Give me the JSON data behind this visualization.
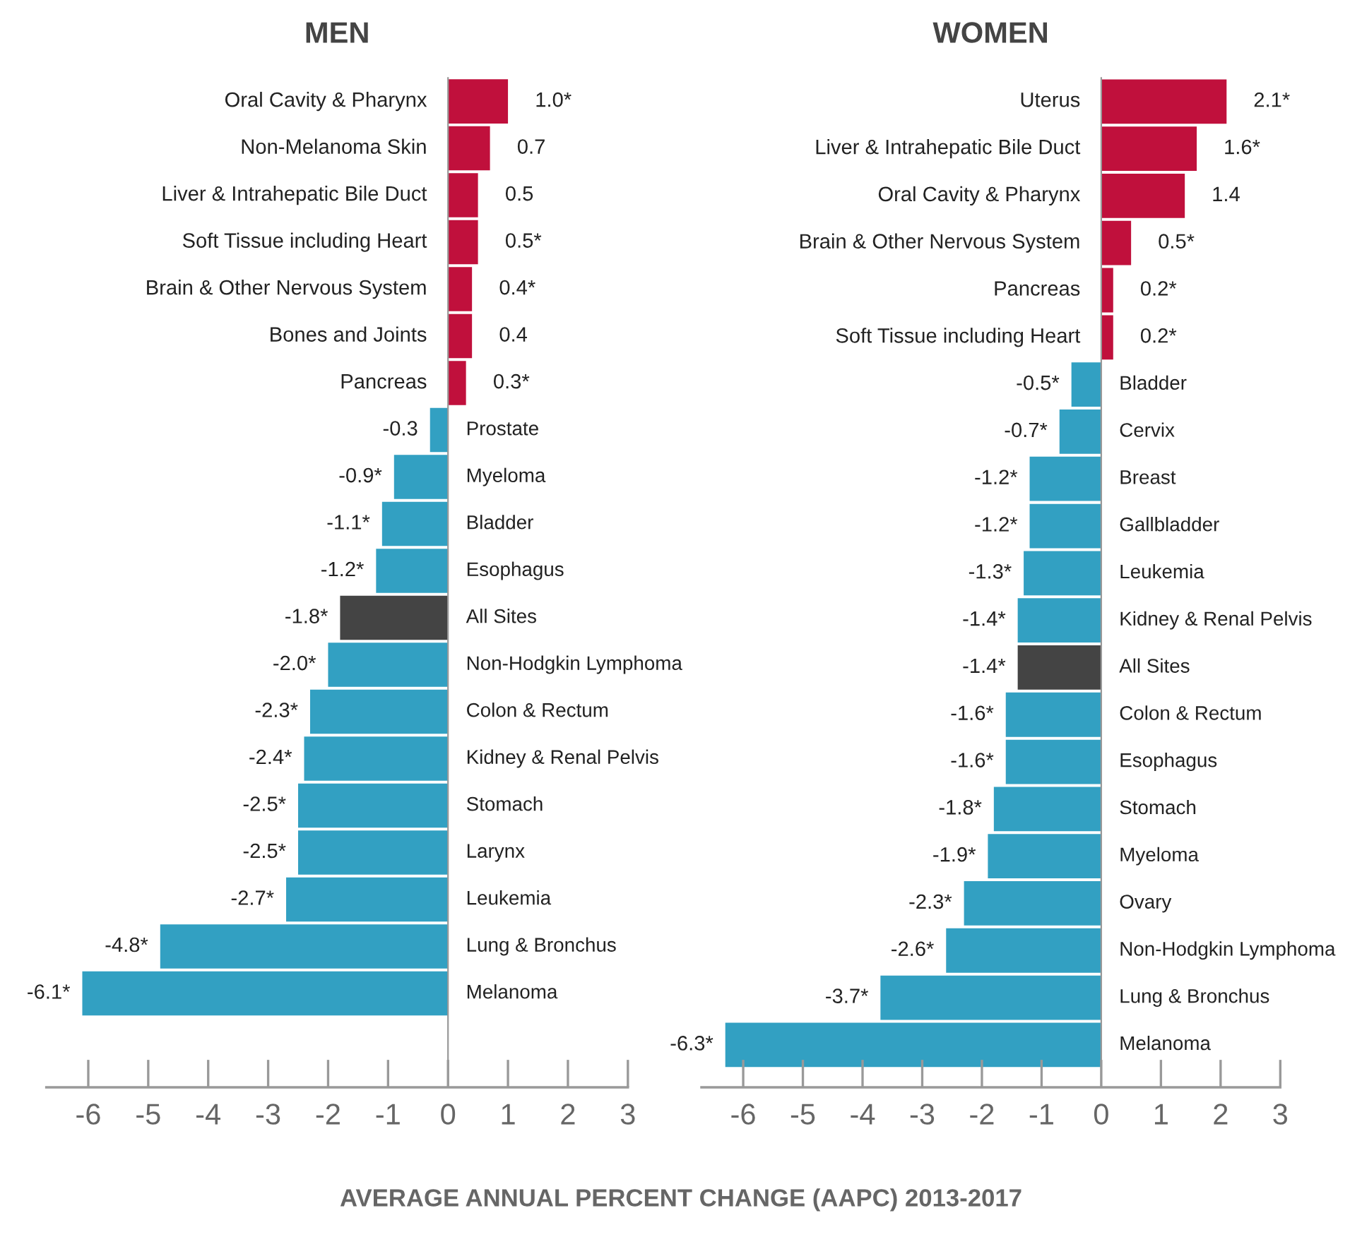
{
  "chart_data": [
    {
      "type": "bar",
      "orientation": "horizontal",
      "title": "MEN",
      "xlabel": "AVERAGE ANNUAL PERCENT CHANGE (AAPC) 2013-2017",
      "categories": [
        "Oral Cavity & Pharynx",
        "Non-Melanoma Skin",
        "Liver & Intrahepatic Bile Duct",
        "Soft Tissue including Heart",
        "Brain & Other Nervous System",
        "Bones and Joints",
        "Pancreas",
        "Prostate",
        "Myeloma",
        "Bladder",
        "Esophagus",
        "All Sites",
        "Non-Hodgkin Lymphoma",
        "Colon & Rectum",
        "Kidney & Renal Pelvis",
        "Stomach",
        "Larynx",
        "Leukemia",
        "Lung & Bronchus",
        "Melanoma"
      ],
      "values": [
        1.0,
        0.7,
        0.5,
        0.5,
        0.4,
        0.4,
        0.3,
        -0.3,
        -0.9,
        -1.1,
        -1.2,
        -1.8,
        -2.0,
        -2.3,
        -2.4,
        -2.5,
        -2.5,
        -2.7,
        -4.8,
        -6.1
      ],
      "value_labels": [
        "1.0*",
        "0.7",
        "0.5",
        "0.5*",
        "0.4*",
        "0.4",
        "0.3*",
        "-0.3",
        "-0.9*",
        "-1.1*",
        "-1.2*",
        "-1.8*",
        "-2.0*",
        "-2.3*",
        "-2.4*",
        "-2.5*",
        "-2.5*",
        "-2.7*",
        "-4.8*",
        "-6.1*"
      ],
      "colors": [
        "#c0103c",
        "#c0103c",
        "#c0103c",
        "#c0103c",
        "#c0103c",
        "#c0103c",
        "#c0103c",
        "#32a0c2",
        "#32a0c2",
        "#32a0c2",
        "#32a0c2",
        "#444444",
        "#32a0c2",
        "#32a0c2",
        "#32a0c2",
        "#32a0c2",
        "#32a0c2",
        "#32a0c2",
        "#32a0c2",
        "#32a0c2"
      ],
      "xlim": [
        -6.7,
        3
      ],
      "xticks": [
        -6,
        -5,
        -4,
        -3,
        -2,
        -1,
        0,
        1,
        2,
        3
      ],
      "grid": false
    },
    {
      "type": "bar",
      "orientation": "horizontal",
      "title": "WOMEN",
      "categories": [
        "Uterus",
        "Liver & Intrahepatic Bile Duct",
        "Oral Cavity & Pharynx",
        "Brain & Other Nervous System",
        "Pancreas",
        "Soft Tissue including Heart",
        "Bladder",
        "Cervix",
        "Breast",
        "Gallbladder",
        "Leukemia",
        "Kidney & Renal Pelvis",
        "All Sites",
        "Colon & Rectum",
        "Esophagus",
        "Stomach",
        "Myeloma",
        "Ovary",
        "Non-Hodgkin Lymphoma",
        "Lung & Bronchus",
        "Melanoma"
      ],
      "values": [
        2.1,
        1.6,
        1.4,
        0.5,
        0.2,
        0.2,
        -0.5,
        -0.7,
        -1.2,
        -1.2,
        -1.3,
        -1.4,
        -1.4,
        -1.6,
        -1.6,
        -1.8,
        -1.9,
        -2.3,
        -2.6,
        -3.7,
        -6.3
      ],
      "value_labels": [
        "2.1*",
        "1.6*",
        "1.4",
        "0.5*",
        "0.2*",
        "0.2*",
        "-0.5*",
        "-0.7*",
        "-1.2*",
        "-1.2*",
        "-1.3*",
        "-1.4*",
        "-1.4*",
        "-1.6*",
        "-1.6*",
        "-1.8*",
        "-1.9*",
        "-2.3*",
        "-2.6*",
        "-3.7*",
        "-6.3*"
      ],
      "colors": [
        "#c0103c",
        "#c0103c",
        "#c0103c",
        "#c0103c",
        "#c0103c",
        "#c0103c",
        "#32a0c2",
        "#32a0c2",
        "#32a0c2",
        "#32a0c2",
        "#32a0c2",
        "#32a0c2",
        "#444444",
        "#32a0c2",
        "#32a0c2",
        "#32a0c2",
        "#32a0c2",
        "#32a0c2",
        "#32a0c2",
        "#32a0c2",
        "#32a0c2"
      ],
      "xlim": [
        -6.7,
        3
      ],
      "xticks": [
        -6,
        -5,
        -4,
        -3,
        -2,
        -1,
        0,
        1,
        2,
        3
      ],
      "grid": false
    }
  ]
}
